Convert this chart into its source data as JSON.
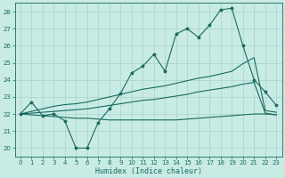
{
  "bg_color": "#c8ebe4",
  "grid_color": "#a8d4cc",
  "line_color": "#1a6b60",
  "xlabel": "Humidex (Indice chaleur)",
  "xlim": [
    -0.5,
    23.5
  ],
  "ylim": [
    19.5,
    28.5
  ],
  "xticks": [
    0,
    1,
    2,
    3,
    4,
    5,
    6,
    7,
    8,
    9,
    10,
    11,
    12,
    13,
    14,
    15,
    16,
    17,
    18,
    19,
    20,
    21,
    22,
    23
  ],
  "yticks": [
    20,
    21,
    22,
    23,
    24,
    25,
    26,
    27,
    28
  ],
  "main_line": [
    22.0,
    22.7,
    21.9,
    22.0,
    21.6,
    20.0,
    20.0,
    21.5,
    22.3,
    23.2,
    24.4,
    24.8,
    25.5,
    24.5,
    26.7,
    27.0,
    26.5,
    27.2,
    28.1,
    28.2,
    26.0,
    24.0,
    23.3,
    22.5
  ],
  "upper_line": [
    22.0,
    22.15,
    22.3,
    22.45,
    22.55,
    22.6,
    22.7,
    22.85,
    23.0,
    23.15,
    23.3,
    23.45,
    23.55,
    23.65,
    23.8,
    23.95,
    24.1,
    24.2,
    24.35,
    24.5,
    24.95,
    25.3,
    22.2,
    22.1
  ],
  "mean_line": [
    22.0,
    22.05,
    22.1,
    22.15,
    22.2,
    22.25,
    22.3,
    22.4,
    22.5,
    22.6,
    22.7,
    22.8,
    22.85,
    22.95,
    23.05,
    23.15,
    23.3,
    23.4,
    23.5,
    23.6,
    23.75,
    23.85,
    22.05,
    21.95
  ],
  "lower_line": [
    22.0,
    21.95,
    21.9,
    21.85,
    21.8,
    21.75,
    21.75,
    21.7,
    21.65,
    21.65,
    21.65,
    21.65,
    21.65,
    21.65,
    21.65,
    21.7,
    21.75,
    21.8,
    21.85,
    21.9,
    21.95,
    22.0,
    22.0,
    21.95
  ]
}
